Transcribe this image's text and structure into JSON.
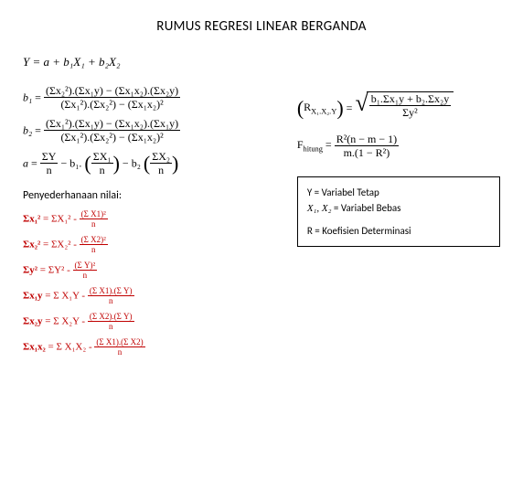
{
  "title": "RUMUS REGRESI LINEAR BERGANDA",
  "main_equation": "Y = a + b₁X₁ + b₂X₂",
  "formulas": {
    "b1": {
      "lhs": "b₁",
      "num": "(Σx₂²).(Σx₁y) − (Σx₁x₂).(Σx₂y)",
      "den": "(Σx₁²).(Σx₂²) − (Σx₁x₂)²"
    },
    "b2": {
      "lhs": "b₂",
      "num": "(Σx₁²).(Σx₁y) − (Σx₁x₂).(Σx₁y)",
      "den": "(Σx₁²).(Σx₂²) − (Σx₁x₂)²"
    },
    "a": {
      "lhs": "a",
      "f1n": "ΣY",
      "f1d": "n",
      "b1": "b₁",
      "f2n": "ΣX₁",
      "f2d": "n",
      "b2": "b₂",
      "f3n": "ΣX₂",
      "f3d": "n"
    },
    "R": {
      "lhs_sub": "X₁.X₂.Y",
      "num": "b₁.Σx₁y + b₂.Σx₂y",
      "den": "Σy²"
    },
    "F": {
      "lhs": "F",
      "lhs_sub": "hitung",
      "num": "R²(n − m − 1)",
      "den": "m.(1 − R²)"
    }
  },
  "simplification_label": "Penyederhanaan nilai:",
  "simpl": [
    {
      "lhs": "Σx₁²",
      "rhs_a": "ΣX₁²",
      "num": "(Σ X1)²",
      "den": "n"
    },
    {
      "lhs": "Σx₂²",
      "rhs_a": "ΣX₂²",
      "num": "(Σ X2)²",
      "den": "n"
    },
    {
      "lhs": "Σy²",
      "rhs_a": "ΣY²",
      "num": "(Σ Y)²",
      "den": "n"
    },
    {
      "lhs": "Σx₁y",
      "rhs_a": "Σ X₁Y",
      "num": "(Σ X1).(Σ Y)",
      "den": "n"
    },
    {
      "lhs": "Σx₂y",
      "rhs_a": "Σ X₂Y",
      "num": "(Σ X2).(Σ Y)",
      "den": "n"
    },
    {
      "lhs": "Σx₁x₂",
      "rhs_a": "Σ X₁X₂",
      "num": "(Σ X1).(Σ X2)",
      "den": "n"
    }
  ],
  "legend": {
    "l1a": "Y = ",
    "l1b": "Variabel Tetap",
    "l2a": "X₁, X₂",
    "l2b": " = Variabel Bebas",
    "l3": "R = Koefisien Determinasi"
  },
  "colors": {
    "red": "#c00000"
  }
}
